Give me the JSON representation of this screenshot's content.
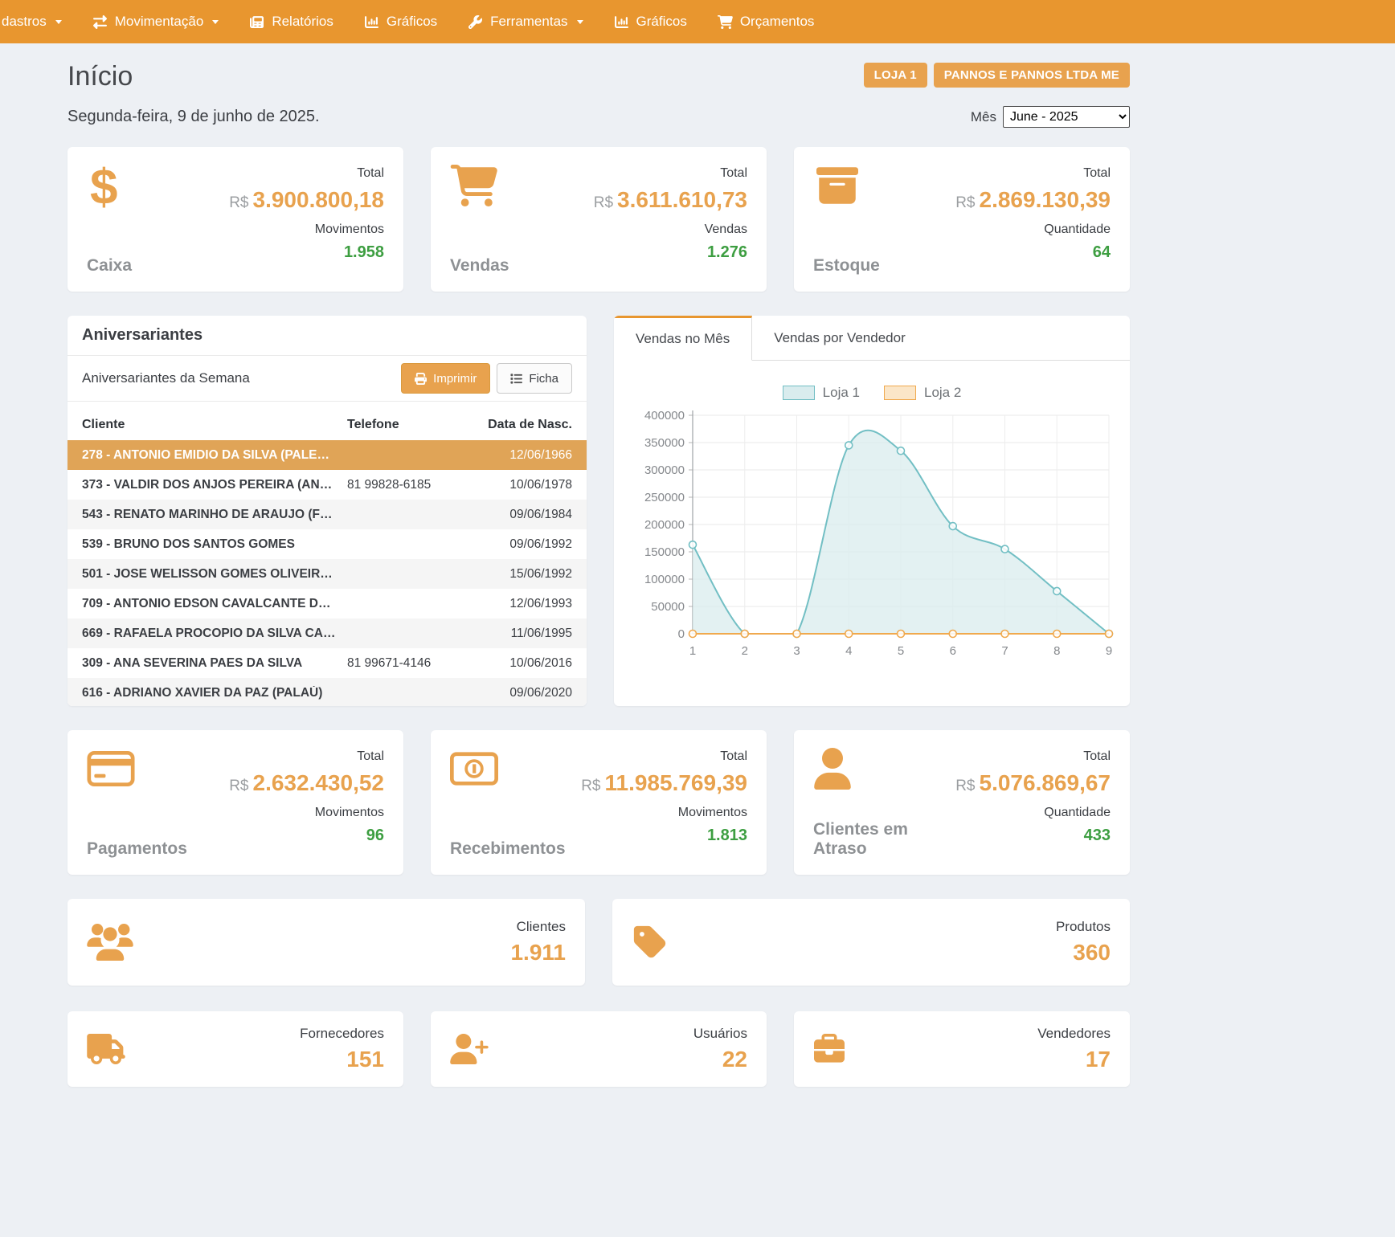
{
  "navbar": {
    "items": [
      {
        "label": "dastros"
      },
      {
        "label": "Movimentação"
      },
      {
        "label": "Relatórios"
      },
      {
        "label": "Gráficos"
      },
      {
        "label": "Ferramentas"
      },
      {
        "label": "Gráficos"
      },
      {
        "label": "Orçamentos"
      }
    ]
  },
  "header": {
    "title": "Início",
    "date": "Segunda-feira, 9 de junho de 2025.",
    "store_badge": "LOJA 1",
    "company_badge": "PANNOS E PANNOS LTDA ME",
    "month_label": "Mês",
    "month_value": "June - 2025"
  },
  "stat_cards_top": [
    {
      "label": "Caixa",
      "icon_glyph": "$",
      "total_label": "Total",
      "currency": "R$",
      "amount": "3.900.800,18",
      "count_label": "Movimentos",
      "count": "1.958"
    },
    {
      "label": "Vendas",
      "total_label": "Total",
      "currency": "R$",
      "amount": "3.611.610,73",
      "count_label": "Vendas",
      "count": "1.276"
    },
    {
      "label": "Estoque",
      "total_label": "Total",
      "currency": "R$",
      "amount": "2.869.130,39",
      "count_label": "Quantidade",
      "count": "64"
    }
  ],
  "birthdays": {
    "title": "Aniversariantes",
    "subtitle": "Aniversariantes da Semana",
    "print_button": "Imprimir",
    "ficha_button": "Ficha",
    "columns": [
      "Cliente",
      "Telefone",
      "Data de Nasc."
    ],
    "rows": [
      {
        "cliente": "278 - ANTONIO EMIDIO DA SILVA (PALE…",
        "telefone": "",
        "data": "12/06/1966"
      },
      {
        "cliente": "373 - VALDIR DOS ANJOS PEREIRA (AN…",
        "telefone": "81 99828-6185",
        "data": "10/06/1978"
      },
      {
        "cliente": "543 - RENATO MARINHO DE ARAUJO (F…",
        "telefone": "",
        "data": "09/06/1984"
      },
      {
        "cliente": "539 - BRUNO DOS SANTOS GOMES",
        "telefone": "",
        "data": "09/06/1992"
      },
      {
        "cliente": "501 - JOSE WELISSON GOMES OLIVEIR…",
        "telefone": "",
        "data": "15/06/1992"
      },
      {
        "cliente": "709 - ANTONIO EDSON CAVALCANTE D…",
        "telefone": "",
        "data": "12/06/1993"
      },
      {
        "cliente": "669 - RAFAELA PROCOPIO DA SILVA CA…",
        "telefone": "",
        "data": "11/06/1995"
      },
      {
        "cliente": "309 - ANA SEVERINA PAES DA SILVA",
        "telefone": "81 99671-4146",
        "data": "10/06/2016"
      },
      {
        "cliente": "616 - ADRIANO XAVIER DA PAZ (PALAÚ)",
        "telefone": "",
        "data": "09/06/2020"
      }
    ]
  },
  "sales_panel": {
    "tabs": [
      "Vendas no Mês",
      "Vendas por Vendedor"
    ]
  },
  "chart_data": {
    "type": "line",
    "title": "",
    "x": [
      1,
      2,
      3,
      4,
      5,
      6,
      7,
      8,
      9
    ],
    "series": [
      {
        "name": "Loja 1",
        "values": [
          163000,
          0,
          0,
          345000,
          335000,
          197000,
          155000,
          78000,
          0
        ],
        "color": "#72bfc4",
        "fill": "#d9ecee"
      },
      {
        "name": "Loja 2",
        "values": [
          0,
          0,
          0,
          0,
          0,
          0,
          0,
          0,
          0
        ],
        "color": "#f0a94e",
        "fill": "#fbe6c8"
      }
    ],
    "ylim": [
      0,
      400000
    ],
    "ytick_step": 50000,
    "grid": true,
    "legend_position": "top",
    "smooth": true
  },
  "stat_cards_mid": [
    {
      "label": "Pagamentos",
      "total_label": "Total",
      "currency": "R$",
      "amount": "2.632.430,52",
      "count_label": "Movimentos",
      "count": "96"
    },
    {
      "label": "Recebimentos",
      "total_label": "Total",
      "currency": "R$",
      "amount": "11.985.769,39",
      "count_label": "Movimentos",
      "count": "1.813"
    },
    {
      "label": "Clientes em Atraso",
      "total_label": "Total",
      "currency": "R$",
      "amount": "5.076.869,67",
      "count_label": "Quantidade",
      "count": "433"
    }
  ],
  "wide_cards": [
    {
      "label": "Clientes",
      "value": "1.911"
    },
    {
      "label": "Produtos",
      "value": "360"
    }
  ],
  "bottom_cards": [
    {
      "label": "Fornecedores",
      "value": "151"
    },
    {
      "label": "Usuários",
      "value": "22"
    },
    {
      "label": "Vendedores",
      "value": "17"
    }
  ],
  "colors": {
    "navbar_orange": "#e8962f",
    "accent_orange": "#e8a24e",
    "green": "#3d9e41",
    "background": "#edf0f4",
    "highlight_row": "#e0a457",
    "loja1_teal": "#72bfc4",
    "loja2_orange": "#f0a94e"
  }
}
